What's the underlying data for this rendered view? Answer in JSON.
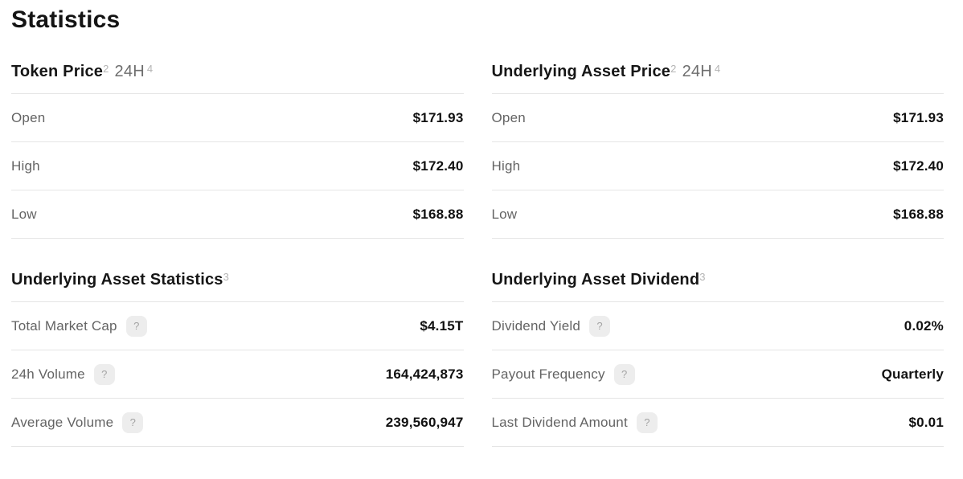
{
  "page": {
    "title": "Statistics"
  },
  "icons": {
    "help": "?"
  },
  "colors": {
    "heading_text": "#141414",
    "label_text": "#646464",
    "value_text": "#111111",
    "divider": "#e5e5e5",
    "help_badge_bg": "#ededed",
    "help_badge_fg": "#a3a3a3",
    "superscript": "#b4b4b4",
    "subtitle_text": "#6e6e6e"
  },
  "sections": [
    {
      "title": "Token Price",
      "title_sup": "2",
      "subtitle": "24H",
      "subtitle_sup": "4",
      "rows": [
        {
          "label": "Open",
          "value": "$171.93"
        },
        {
          "label": "High",
          "value": "$172.40"
        },
        {
          "label": "Low",
          "value": "$168.88"
        }
      ]
    },
    {
      "title": "Underlying Asset Price",
      "title_sup": "2",
      "subtitle": "24H",
      "subtitle_sup": "4",
      "rows": [
        {
          "label": "Open",
          "value": "$171.93"
        },
        {
          "label": "High",
          "value": "$172.40"
        },
        {
          "label": "Low",
          "value": "$168.88"
        }
      ]
    },
    {
      "title": "Underlying Asset Statistics",
      "title_sup": "3",
      "rows": [
        {
          "label": "Total Market Cap",
          "value": "$4.15T",
          "help": true
        },
        {
          "label": "24h Volume",
          "value": "164,424,873",
          "help": true
        },
        {
          "label": "Average Volume",
          "value": "239,560,947",
          "help": true
        }
      ]
    },
    {
      "title": "Underlying Asset Dividend",
      "title_sup": "3",
      "rows": [
        {
          "label": "Dividend Yield",
          "value": "0.02%",
          "help": true
        },
        {
          "label": "Payout Frequency",
          "value": "Quarterly",
          "help": true
        },
        {
          "label": "Last Dividend Amount",
          "value": "$0.01",
          "help": true
        }
      ]
    }
  ]
}
